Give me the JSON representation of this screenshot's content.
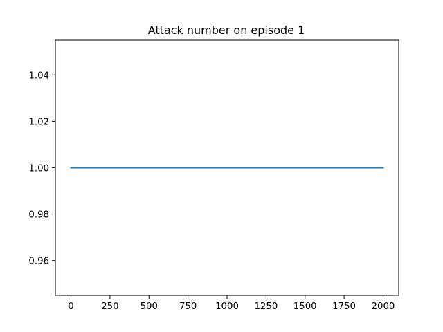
{
  "chart_data": {
    "type": "line",
    "title": "Attack number on episode 1",
    "xlabel": "",
    "ylabel": "",
    "xlim": [
      -100,
      2100
    ],
    "ylim": [
      0.945,
      1.055
    ],
    "xticks": [
      0,
      250,
      500,
      750,
      1000,
      1250,
      1500,
      1750,
      2000
    ],
    "xtick_labels": [
      "0",
      "250",
      "500",
      "750",
      "1000",
      "1250",
      "1500",
      "1750",
      "2000"
    ],
    "yticks": [
      0.96,
      0.98,
      1.0,
      1.02,
      1.04
    ],
    "ytick_labels": [
      "0.96",
      "0.98",
      "1.00",
      "1.02",
      "1.04"
    ],
    "grid": false,
    "legend": "none",
    "series": [
      {
        "color": "#1f77b4",
        "x": [
          0,
          2000
        ],
        "y": [
          1.0,
          1.0
        ]
      }
    ]
  }
}
